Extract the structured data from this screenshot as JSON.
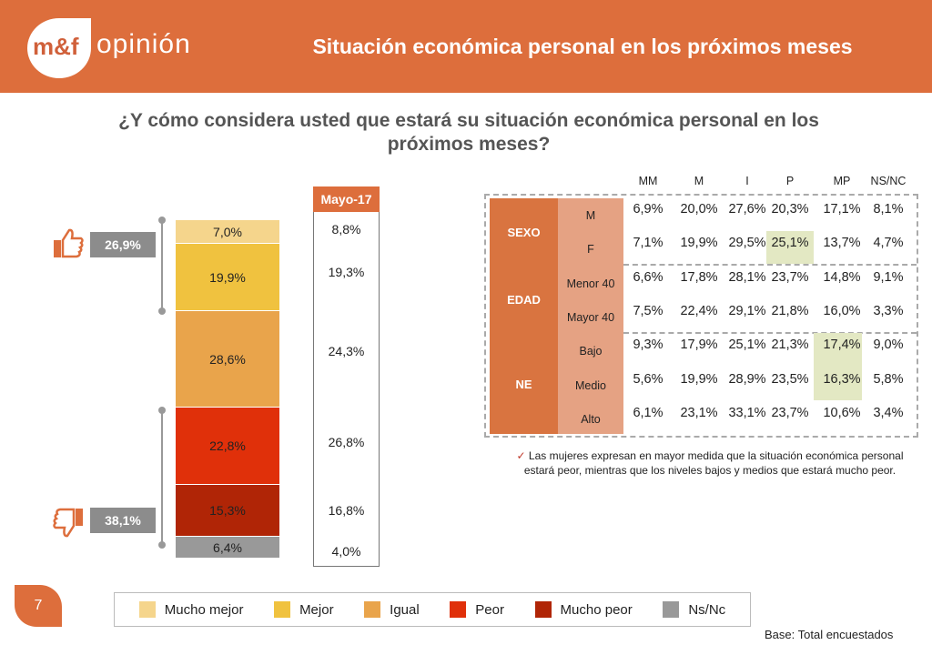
{
  "header": {
    "logo_text": "m&f",
    "brand": "opinión",
    "title": "Situación económica personal en los próximos meses"
  },
  "question": "¿Y cómo considera usted que estará su situación económica personal en los próximos meses?",
  "chart_data": {
    "type": "bar",
    "stacked": true,
    "categories": [
      "Mucho mejor",
      "Mejor",
      "Igual",
      "Peor",
      "Mucho peor",
      "Ns/Nc"
    ],
    "values": [
      7.0,
      19.9,
      28.6,
      22.8,
      15.3,
      6.4
    ],
    "labels": [
      "7,0%",
      "19,9%",
      "28,6%",
      "22,8%",
      "15,3%",
      "6,4%"
    ],
    "colors": [
      "#f5d58c",
      "#f0c23f",
      "#e9a44b",
      "#e0300a",
      "#b02506",
      "#999999"
    ],
    "ylim": [
      0,
      100
    ],
    "comparison": {
      "label": "Mayo-17",
      "values": [
        "8,8%",
        "19,3%",
        "24,3%",
        "26,8%",
        "16,8%",
        "4,0%"
      ]
    },
    "summaries": [
      {
        "label": "26,9%",
        "icon": "thumbs-up-icon"
      },
      {
        "label": "38,1%",
        "icon": "thumbs-down-icon"
      }
    ]
  },
  "table": {
    "columns": [
      "MM",
      "M",
      "I",
      "P",
      "MP",
      "NS/NC"
    ],
    "groups": [
      {
        "name": "SEXO"
      },
      {
        "name": "EDAD"
      },
      {
        "name": "NE"
      }
    ],
    "rows": [
      {
        "label": "M",
        "values": [
          "6,9%",
          "20,0%",
          "27,6%",
          "20,3%",
          "17,1%",
          "8,1%"
        ]
      },
      {
        "label": "F",
        "values": [
          "7,1%",
          "19,9%",
          "29,5%",
          "25,1%",
          "13,7%",
          "4,7%"
        ]
      },
      {
        "label": "Menor 40",
        "values": [
          "6,6%",
          "17,8%",
          "28,1%",
          "23,7%",
          "14,8%",
          "9,1%"
        ]
      },
      {
        "label": "Mayor 40",
        "values": [
          "7,5%",
          "22,4%",
          "29,1%",
          "21,8%",
          "16,0%",
          "3,3%"
        ]
      },
      {
        "label": "Bajo",
        "values": [
          "9,3%",
          "17,9%",
          "25,1%",
          "21,3%",
          "17,4%",
          "9,0%"
        ]
      },
      {
        "label": "Medio",
        "values": [
          "5,6%",
          "19,9%",
          "28,9%",
          "23,5%",
          "16,3%",
          "5,8%"
        ]
      },
      {
        "label": "Alto",
        "values": [
          "6,1%",
          "23,1%",
          "33,1%",
          "23,7%",
          "10,6%",
          "3,4%"
        ]
      }
    ],
    "highlight_color": "#e3e8c3"
  },
  "note": {
    "check": "✓",
    "text": "Las mujeres expresan en mayor medida que la situación económica personal estará peor, mientras que los niveles bajos y medios que estará mucho peor."
  },
  "legend": [
    "Mucho mejor",
    "Mejor",
    "Igual",
    "Peor",
    "Mucho peor",
    "Ns/Nc"
  ],
  "footer": {
    "page": "7",
    "base": "Base: Total encuestados"
  }
}
